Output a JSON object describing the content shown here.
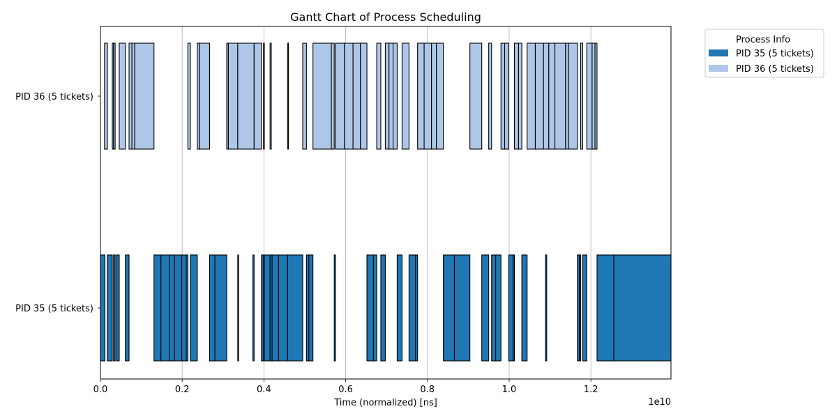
{
  "chart_data": {
    "type": "gantt",
    "title": "Gantt Chart of Process Scheduling",
    "xlabel": "Time (normalized) [ns]",
    "x_offset_label": "1e10",
    "xlim": [
      0,
      1.396
    ],
    "x_ticks": [
      0.0,
      0.2,
      0.4,
      0.6,
      0.8,
      1.0,
      1.2
    ],
    "x_tick_labels": [
      "0.0",
      "0.2",
      "0.4",
      "0.6",
      "0.8",
      "1.0",
      "1.2"
    ],
    "grid": "x",
    "legend": {
      "title": "Process Info",
      "placement": "outside-top-right",
      "entries": [
        {
          "label": "PID 35 (5 tickets)",
          "color": "#1f77b4"
        },
        {
          "label": "PID 36 (5 tickets)",
          "color": "#aec7e8"
        }
      ]
    },
    "categories": [
      "PID 35 (5 tickets)",
      "PID 36 (5 tickets)"
    ],
    "series": [
      {
        "name": "PID 35 (5 tickets)",
        "color": "#1f77b4",
        "intervals": [
          [
            0.0,
            0.011
          ],
          [
            0.017,
            0.029
          ],
          [
            0.032,
            0.036
          ],
          [
            0.039,
            0.046
          ],
          [
            0.061,
            0.07
          ],
          [
            0.131,
            0.148
          ],
          [
            0.148,
            0.169
          ],
          [
            0.169,
            0.181
          ],
          [
            0.181,
            0.199
          ],
          [
            0.199,
            0.21
          ],
          [
            0.21,
            0.214
          ],
          [
            0.22,
            0.237
          ],
          [
            0.267,
            0.28
          ],
          [
            0.28,
            0.309
          ],
          [
            0.336,
            0.338
          ],
          [
            0.373,
            0.376
          ],
          [
            0.394,
            0.399
          ],
          [
            0.401,
            0.415
          ],
          [
            0.415,
            0.42
          ],
          [
            0.42,
            0.436
          ],
          [
            0.436,
            0.458
          ],
          [
            0.458,
            0.495
          ],
          [
            0.504,
            0.51
          ],
          [
            0.51,
            0.52
          ],
          [
            0.572,
            0.575
          ],
          [
            0.652,
            0.668
          ],
          [
            0.668,
            0.676
          ],
          [
            0.686,
            0.697
          ],
          [
            0.726,
            0.738
          ],
          [
            0.755,
            0.771
          ],
          [
            0.771,
            0.776
          ],
          [
            0.839,
            0.866
          ],
          [
            0.866,
            0.904
          ],
          [
            0.933,
            0.95
          ],
          [
            0.957,
            0.967
          ],
          [
            0.967,
            0.98
          ],
          [
            0.999,
            1.01
          ],
          [
            1.01,
            1.013
          ],
          [
            1.031,
            1.044
          ],
          [
            1.089,
            1.092
          ],
          [
            1.167,
            1.172
          ],
          [
            1.172,
            1.175
          ],
          [
            1.18,
            1.19
          ],
          [
            1.215,
            1.256
          ],
          [
            1.256,
            1.396
          ]
        ]
      },
      {
        "name": "PID 36 (5 tickets)",
        "color": "#aec7e8",
        "intervals": [
          [
            0.01,
            0.017
          ],
          [
            0.029,
            0.032
          ],
          [
            0.032,
            0.036
          ],
          [
            0.046,
            0.061
          ],
          [
            0.07,
            0.077
          ],
          [
            0.077,
            0.084
          ],
          [
            0.084,
            0.131
          ],
          [
            0.214,
            0.22
          ],
          [
            0.237,
            0.242
          ],
          [
            0.242,
            0.267
          ],
          [
            0.309,
            0.313
          ],
          [
            0.313,
            0.336
          ],
          [
            0.336,
            0.376
          ],
          [
            0.376,
            0.394
          ],
          [
            0.399,
            0.401
          ],
          [
            0.415,
            0.418
          ],
          [
            0.458,
            0.46
          ],
          [
            0.495,
            0.504
          ],
          [
            0.52,
            0.565
          ],
          [
            0.565,
            0.572
          ],
          [
            0.575,
            0.597
          ],
          [
            0.597,
            0.618
          ],
          [
            0.618,
            0.636
          ],
          [
            0.636,
            0.652
          ],
          [
            0.676,
            0.686
          ],
          [
            0.697,
            0.706
          ],
          [
            0.706,
            0.716
          ],
          [
            0.716,
            0.726
          ],
          [
            0.738,
            0.755
          ],
          [
            0.776,
            0.792
          ],
          [
            0.792,
            0.81
          ],
          [
            0.81,
            0.822
          ],
          [
            0.822,
            0.839
          ],
          [
            0.904,
            0.933
          ],
          [
            0.95,
            0.957
          ],
          [
            0.98,
            0.989
          ],
          [
            0.989,
            0.999
          ],
          [
            1.013,
            1.023
          ],
          [
            1.023,
            1.031
          ],
          [
            1.044,
            1.064
          ],
          [
            1.064,
            1.084
          ],
          [
            1.084,
            1.097
          ],
          [
            1.097,
            1.112
          ],
          [
            1.112,
            1.138
          ],
          [
            1.138,
            1.145
          ],
          [
            1.145,
            1.167
          ],
          [
            1.175,
            1.18
          ],
          [
            1.19,
            1.203
          ],
          [
            1.203,
            1.21
          ],
          [
            1.21,
            1.215
          ]
        ]
      }
    ]
  }
}
